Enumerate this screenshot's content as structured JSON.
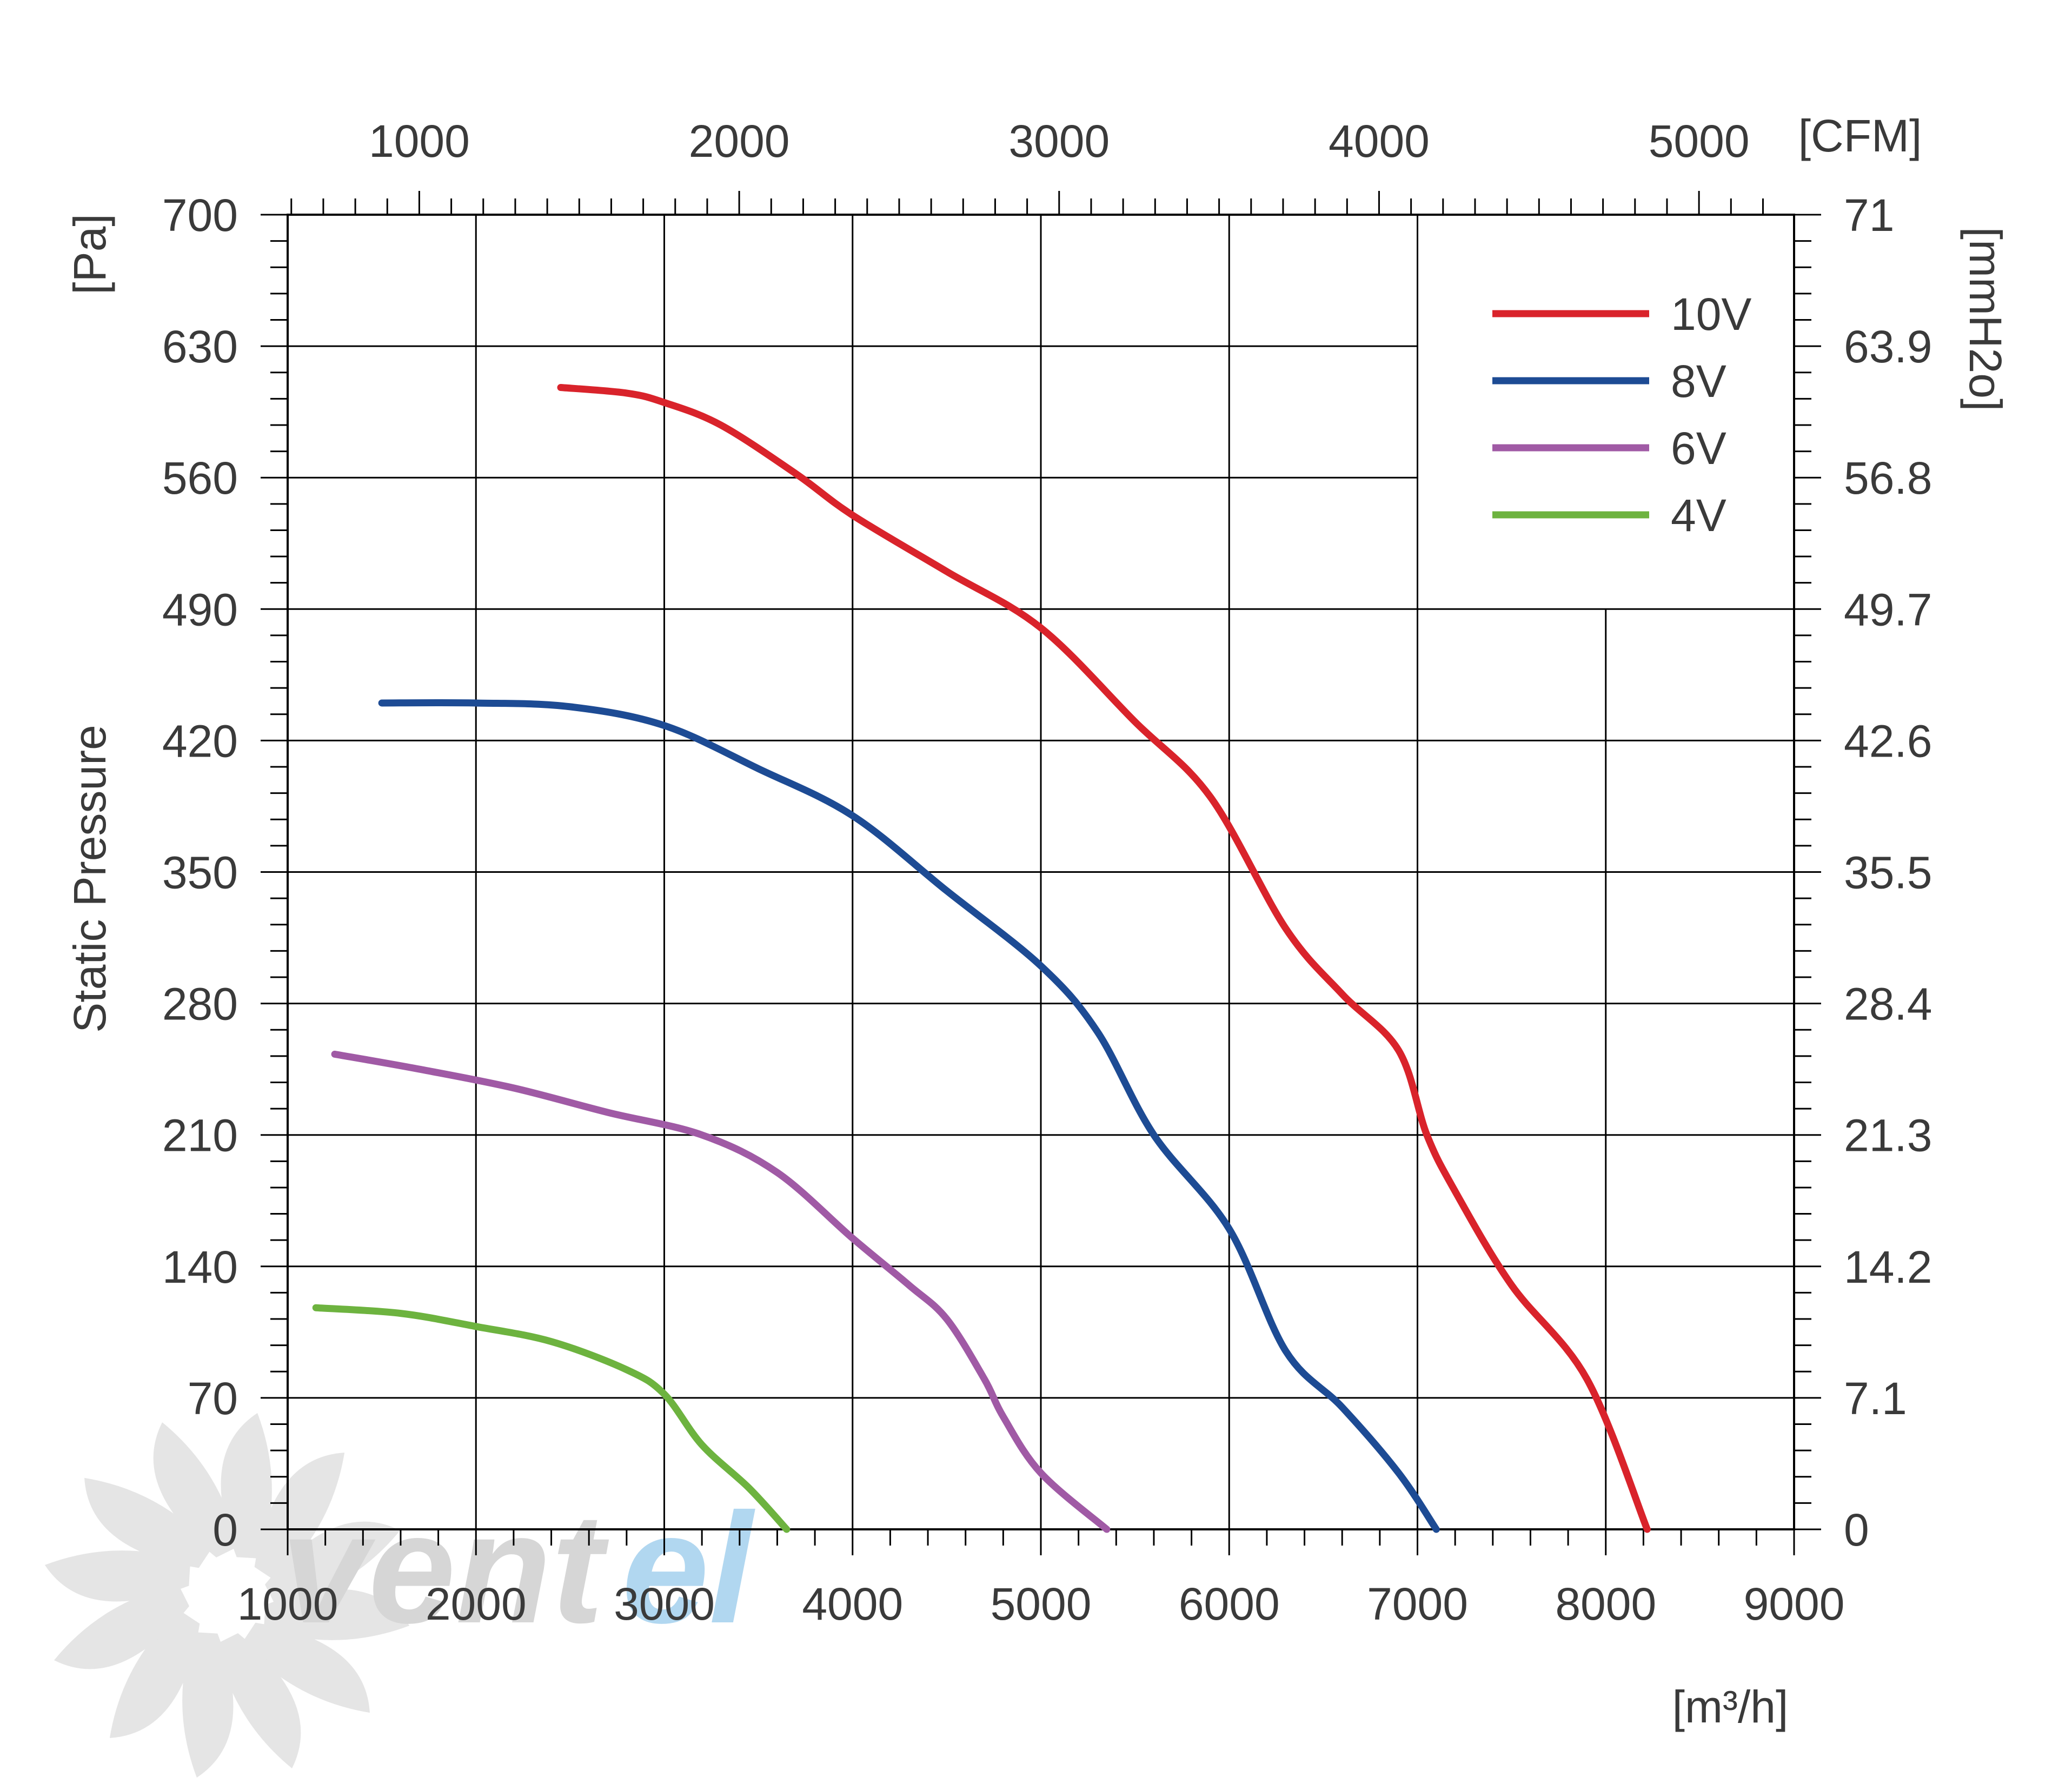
{
  "chart_data": {
    "type": "line",
    "title": "",
    "xlabel": "[m³/h]",
    "ylabel": "Static Pressure",
    "y_unit_left": "[Pa]",
    "y_unit_right": "[mmH2o]",
    "x_unit_top": "[CFM]",
    "xlim": [
      1000,
      9000
    ],
    "ylim": [
      0,
      700
    ],
    "x_ticks": [
      "1000",
      "2000",
      "3000",
      "4000",
      "5000",
      "6000",
      "7000",
      "8000",
      "9000"
    ],
    "x_tick_values": [
      1000,
      2000,
      3000,
      4000,
      5000,
      6000,
      7000,
      8000,
      9000
    ],
    "y_ticks": [
      "0",
      "70",
      "140",
      "210",
      "280",
      "350",
      "420",
      "490",
      "560",
      "630",
      "700"
    ],
    "y_tick_values": [
      0,
      70,
      140,
      210,
      280,
      350,
      420,
      490,
      560,
      630,
      700
    ],
    "y_right_ticks": [
      "0",
      "7.1",
      "14.2",
      "21.3",
      "28.4",
      "35.5",
      "42.6",
      "49.7",
      "56.8",
      "63.9",
      "71"
    ],
    "x_top_ticks": [
      "1000",
      "2000",
      "3000",
      "4000",
      "5000"
    ],
    "x_top_tick_values": [
      1000,
      2000,
      3000,
      4000,
      5000
    ],
    "cfm_to_m3h": 1.699,
    "grid": true,
    "legend_position": "top-right",
    "colors": {
      "10V": "#d9232b",
      "8V": "#1d4b94",
      "6V": "#a05aa5",
      "4V": "#6db33f",
      "grid": "#000000",
      "text": "#3a3a3a",
      "watermark": "#d6d6d6",
      "watermark_accent": "#a9d3ef"
    },
    "series": [
      {
        "name": "10V",
        "color": "#d9232b",
        "x": [
          2450,
          2800,
          3000,
          3300,
          3700,
          4000,
          4500,
          5000,
          5500,
          5900,
          6300,
          6600,
          6900,
          7050,
          7200,
          7500,
          7900,
          8220
        ],
        "y": [
          608,
          605,
          600,
          588,
          562,
          540,
          510,
          480,
          430,
          390,
          320,
          285,
          255,
          210,
          180,
          130,
          80,
          0
        ]
      },
      {
        "name": "8V",
        "color": "#1d4b94",
        "x": [
          1500,
          2000,
          2500,
          3000,
          3500,
          4000,
          4500,
          5000,
          5300,
          5600,
          6000,
          6300,
          6600,
          6900,
          7100
        ],
        "y": [
          440,
          440,
          438,
          428,
          405,
          380,
          340,
          300,
          265,
          210,
          160,
          95,
          65,
          30,
          0
        ]
      },
      {
        "name": "6V",
        "color": "#a05aa5",
        "x": [
          1250,
          1700,
          2200,
          2700,
          3200,
          3600,
          4000,
          4300,
          4500,
          4700,
          4800,
          5000,
          5350
        ],
        "y": [
          253,
          245,
          235,
          222,
          210,
          190,
          155,
          130,
          112,
          80,
          60,
          30,
          0
        ]
      },
      {
        "name": "4V",
        "color": "#6db33f",
        "x": [
          1150,
          1600,
          2000,
          2400,
          2800,
          3000,
          3200,
          3450,
          3650
        ],
        "y": [
          118,
          115,
          108,
          100,
          85,
          72,
          45,
          22,
          0
        ]
      }
    ]
  },
  "watermark": {
    "text_dark": "vent",
    "text_light": "el"
  }
}
